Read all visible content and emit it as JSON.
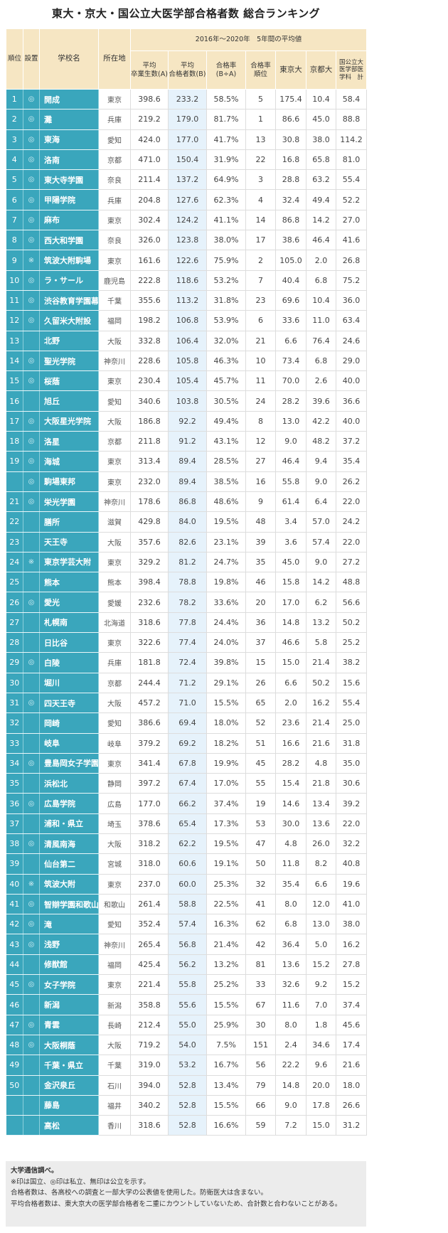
{
  "title": "東大・京大・国公立大医学部合格者数 総合ランキング",
  "header": {
    "rank": "順位",
    "type": "設置",
    "name": "学校名",
    "pref": "所在地",
    "period": "2016年～2020年　5年間の平均値",
    "grads": "平均\n卒業生数(A)",
    "passers": "平均\n合格者数(B)",
    "rate": "合格率\n(B÷A)",
    "rate_rank": "合格率\n順位",
    "todai": "東京大",
    "kyodai": "京都大",
    "med": "国公立大\n医学部医\n学科　計"
  },
  "colors": {
    "teal": "#3aa6bc",
    "header_bg": "#f6e6c3",
    "highlight_col": "#e6f2fb",
    "footer_bg": "#ececec"
  },
  "rows": [
    [
      "1",
      "◎",
      "開成",
      "東京",
      "398.6",
      "233.2",
      "58.5%",
      "5",
      "175.4",
      "10.4",
      "58.4"
    ],
    [
      "2",
      "◎",
      "灘",
      "兵庫",
      "219.2",
      "179.0",
      "81.7%",
      "1",
      "86.6",
      "45.0",
      "88.8"
    ],
    [
      "3",
      "◎",
      "東海",
      "愛知",
      "424.0",
      "177.0",
      "41.7%",
      "13",
      "30.8",
      "38.0",
      "114.2"
    ],
    [
      "4",
      "◎",
      "洛南",
      "京都",
      "471.0",
      "150.4",
      "31.9%",
      "22",
      "16.8",
      "65.8",
      "81.0"
    ],
    [
      "5",
      "◎",
      "東大寺学園",
      "奈良",
      "211.4",
      "137.2",
      "64.9%",
      "3",
      "28.8",
      "63.2",
      "55.4"
    ],
    [
      "6",
      "◎",
      "甲陽学院",
      "兵庫",
      "204.8",
      "127.6",
      "62.3%",
      "4",
      "32.4",
      "49.4",
      "52.2"
    ],
    [
      "7",
      "◎",
      "麻布",
      "東京",
      "302.4",
      "124.2",
      "41.1%",
      "14",
      "86.8",
      "14.2",
      "27.0"
    ],
    [
      "8",
      "◎",
      "西大和学園",
      "奈良",
      "326.0",
      "123.8",
      "38.0%",
      "17",
      "38.6",
      "46.4",
      "41.6"
    ],
    [
      "9",
      "※",
      "筑波大附駒場",
      "東京",
      "161.6",
      "122.6",
      "75.9%",
      "2",
      "105.0",
      "2.0",
      "26.8"
    ],
    [
      "10",
      "◎",
      "ラ・サール",
      "鹿児島",
      "222.8",
      "118.6",
      "53.2%",
      "7",
      "40.4",
      "6.8",
      "75.2"
    ],
    [
      "11",
      "◎",
      "渋谷教育学園幕張",
      "千葉",
      "355.6",
      "113.2",
      "31.8%",
      "23",
      "69.6",
      "10.4",
      "36.0"
    ],
    [
      "12",
      "◎",
      "久留米大附設",
      "福岡",
      "198.2",
      "106.8",
      "53.9%",
      "6",
      "33.6",
      "11.0",
      "63.4"
    ],
    [
      "13",
      "",
      "北野",
      "大阪",
      "332.8",
      "106.4",
      "32.0%",
      "21",
      "6.6",
      "76.4",
      "24.6"
    ],
    [
      "14",
      "◎",
      "聖光学院",
      "神奈川",
      "228.6",
      "105.8",
      "46.3%",
      "10",
      "73.4",
      "6.8",
      "29.0"
    ],
    [
      "15",
      "◎",
      "桜蔭",
      "東京",
      "230.4",
      "105.4",
      "45.7%",
      "11",
      "70.0",
      "2.6",
      "40.0"
    ],
    [
      "16",
      "",
      "旭丘",
      "愛知",
      "340.6",
      "103.8",
      "30.5%",
      "24",
      "28.2",
      "39.6",
      "36.6"
    ],
    [
      "17",
      "◎",
      "大阪星光学院",
      "大阪",
      "186.8",
      "92.2",
      "49.4%",
      "8",
      "13.0",
      "42.2",
      "40.0"
    ],
    [
      "18",
      "◎",
      "洛星",
      "京都",
      "211.8",
      "91.2",
      "43.1%",
      "12",
      "9.0",
      "48.2",
      "37.2"
    ],
    [
      "19",
      "◎",
      "海城",
      "東京",
      "313.4",
      "89.4",
      "28.5%",
      "27",
      "46.4",
      "9.4",
      "35.4"
    ],
    [
      "",
      "◎",
      "駒場東邦",
      "東京",
      "232.0",
      "89.4",
      "38.5%",
      "16",
      "55.8",
      "9.0",
      "26.2"
    ],
    [
      "21",
      "◎",
      "栄光学園",
      "神奈川",
      "178.6",
      "86.8",
      "48.6%",
      "9",
      "61.4",
      "6.4",
      "22.0"
    ],
    [
      "22",
      "",
      "膳所",
      "滋賀",
      "429.8",
      "84.0",
      "19.5%",
      "48",
      "3.4",
      "57.0",
      "24.2"
    ],
    [
      "23",
      "",
      "天王寺",
      "大阪",
      "357.6",
      "82.6",
      "23.1%",
      "39",
      "3.6",
      "57.4",
      "22.0"
    ],
    [
      "24",
      "※",
      "東京学芸大附",
      "東京",
      "329.2",
      "81.2",
      "24.7%",
      "35",
      "45.0",
      "9.0",
      "27.2"
    ],
    [
      "25",
      "",
      "熊本",
      "熊本",
      "398.4",
      "78.8",
      "19.8%",
      "46",
      "15.8",
      "14.2",
      "48.8"
    ],
    [
      "26",
      "◎",
      "愛光",
      "愛媛",
      "232.6",
      "78.2",
      "33.6%",
      "20",
      "17.0",
      "6.2",
      "56.6"
    ],
    [
      "27",
      "",
      "札幌南",
      "北海道",
      "318.6",
      "77.8",
      "24.4%",
      "36",
      "14.8",
      "13.2",
      "50.2"
    ],
    [
      "28",
      "",
      "日比谷",
      "東京",
      "322.6",
      "77.4",
      "24.0%",
      "37",
      "46.6",
      "5.8",
      "25.2"
    ],
    [
      "29",
      "◎",
      "白陵",
      "兵庫",
      "181.8",
      "72.4",
      "39.8%",
      "15",
      "15.0",
      "21.4",
      "38.2"
    ],
    [
      "30",
      "",
      "堀川",
      "京都",
      "244.4",
      "71.2",
      "29.1%",
      "26",
      "6.6",
      "50.2",
      "15.6"
    ],
    [
      "31",
      "◎",
      "四天王寺",
      "大阪",
      "457.2",
      "71.0",
      "15.5%",
      "65",
      "2.0",
      "16.2",
      "55.4"
    ],
    [
      "32",
      "",
      "岡崎",
      "愛知",
      "386.6",
      "69.4",
      "18.0%",
      "52",
      "23.6",
      "21.4",
      "25.0"
    ],
    [
      "33",
      "",
      "岐阜",
      "岐阜",
      "379.2",
      "69.2",
      "18.2%",
      "51",
      "16.6",
      "21.6",
      "31.8"
    ],
    [
      "34",
      "◎",
      "豊島岡女子学園",
      "東京",
      "341.4",
      "67.8",
      "19.9%",
      "45",
      "28.2",
      "4.8",
      "35.0"
    ],
    [
      "35",
      "",
      "浜松北",
      "静岡",
      "397.2",
      "67.4",
      "17.0%",
      "55",
      "15.4",
      "21.8",
      "30.6"
    ],
    [
      "36",
      "◎",
      "広島学院",
      "広島",
      "177.0",
      "66.2",
      "37.4%",
      "19",
      "14.6",
      "13.4",
      "39.2"
    ],
    [
      "37",
      "",
      "浦和・県立",
      "埼玉",
      "378.6",
      "65.4",
      "17.3%",
      "53",
      "30.0",
      "13.6",
      "22.0"
    ],
    [
      "38",
      "◎",
      "清風南海",
      "大阪",
      "318.2",
      "62.2",
      "19.5%",
      "47",
      "4.8",
      "26.0",
      "32.2"
    ],
    [
      "39",
      "",
      "仙台第二",
      "宮城",
      "318.0",
      "60.6",
      "19.1%",
      "50",
      "11.8",
      "8.2",
      "40.8"
    ],
    [
      "40",
      "※",
      "筑波大附",
      "東京",
      "237.0",
      "60.0",
      "25.3%",
      "32",
      "35.4",
      "6.6",
      "19.6"
    ],
    [
      "41",
      "◎",
      "智辯学園和歌山",
      "和歌山",
      "261.4",
      "58.8",
      "22.5%",
      "41",
      "8.0",
      "12.0",
      "41.0"
    ],
    [
      "42",
      "◎",
      "滝",
      "愛知",
      "352.4",
      "57.4",
      "16.3%",
      "62",
      "6.8",
      "13.0",
      "38.0"
    ],
    [
      "43",
      "◎",
      "浅野",
      "神奈川",
      "265.4",
      "56.8",
      "21.4%",
      "42",
      "36.4",
      "5.0",
      "16.2"
    ],
    [
      "44",
      "",
      "修猷館",
      "福岡",
      "425.4",
      "56.2",
      "13.2%",
      "81",
      "13.6",
      "15.2",
      "27.8"
    ],
    [
      "45",
      "◎",
      "女子学院",
      "東京",
      "221.4",
      "55.8",
      "25.2%",
      "33",
      "32.6",
      "9.2",
      "15.2"
    ],
    [
      "46",
      "",
      "新潟",
      "新潟",
      "358.8",
      "55.6",
      "15.5%",
      "67",
      "11.6",
      "7.0",
      "37.4"
    ],
    [
      "47",
      "◎",
      "青雲",
      "長崎",
      "212.4",
      "55.0",
      "25.9%",
      "30",
      "8.0",
      "1.8",
      "45.6"
    ],
    [
      "48",
      "◎",
      "大阪桐蔭",
      "大阪",
      "719.2",
      "54.0",
      "7.5%",
      "151",
      "2.4",
      "34.6",
      "17.4"
    ],
    [
      "49",
      "",
      "千葉・県立",
      "千葉",
      "319.0",
      "53.2",
      "16.7%",
      "56",
      "22.2",
      "9.6",
      "21.6"
    ],
    [
      "50",
      "",
      "金沢泉丘",
      "石川",
      "394.0",
      "52.8",
      "13.4%",
      "79",
      "14.8",
      "20.0",
      "18.0"
    ],
    [
      "",
      "",
      "藤島",
      "福井",
      "340.2",
      "52.8",
      "15.5%",
      "66",
      "9.0",
      "17.8",
      "26.6"
    ],
    [
      "",
      "",
      "高松",
      "香川",
      "318.6",
      "52.8",
      "16.6%",
      "59",
      "7.2",
      "15.0",
      "31.2"
    ]
  ],
  "notes": [
    "大学通信調べ。",
    "※印は国立、◎印は私立、無印は公立を示す。",
    "合格者数は、各高校への調査と一部大学の公表値を使用した。防衛医大は含まない。",
    "平均合格者数は、東大京大の医学部合格者を二重にカウントしていないため、合計数と合わないことがある。"
  ]
}
